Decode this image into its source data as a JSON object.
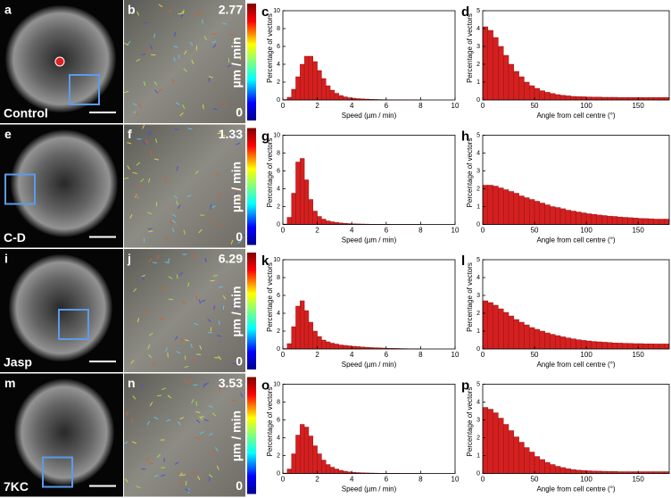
{
  "figure": {
    "rows": [
      {
        "image_panel": "a",
        "condition": "Control",
        "flow_panel": "b",
        "flow_max": 2.77,
        "colorbar_label": "µm / min",
        "colorbar_min": 0
      },
      {
        "image_panel": "e",
        "condition": "C-D",
        "flow_panel": "f",
        "flow_max": 1.33,
        "colorbar_label": "µm / min",
        "colorbar_min": 0
      },
      {
        "image_panel": "i",
        "condition": "Jasp",
        "flow_panel": "j",
        "flow_max": 6.29,
        "colorbar_label": "µm / min",
        "colorbar_min": 0
      },
      {
        "image_panel": "m",
        "condition": "7KC",
        "flow_panel": "n",
        "flow_max": 3.53,
        "colorbar_label": "µm / min",
        "colorbar_min": 0
      }
    ]
  },
  "chart_data": [
    {
      "type": "histogram",
      "panel_label": "c",
      "x_label": "Speed (µm / min)",
      "y_label": "Percentage of vectors",
      "color": "#d42020",
      "bins": [
        0,
        0.25,
        0.5,
        0.75,
        1,
        1.25,
        1.5,
        1.75,
        2,
        2.25,
        2.5,
        2.75,
        3,
        3.25,
        3.5,
        3.75,
        4,
        4.25,
        4.5,
        4.75,
        5,
        5.25,
        5.5,
        5.75,
        6,
        6.25,
        6.5,
        6.75,
        7,
        7.25,
        7.5,
        7.75,
        8
      ],
      "values": [
        0.05,
        0.3,
        1.2,
        2.6,
        4.0,
        4.9,
        4.9,
        4.3,
        3.3,
        2.4,
        1.6,
        1.1,
        0.75,
        0.5,
        0.35,
        0.25,
        0.2,
        0.15,
        0.12,
        0.1,
        0.08,
        0.06,
        0.05,
        0.04,
        0.03,
        0.03,
        0.02,
        0.02,
        0.01,
        0.01,
        0.01,
        0.01
      ],
      "xlim": [
        0,
        10
      ],
      "ylim": [
        0,
        10
      ],
      "xticks": [
        0,
        2,
        4,
        6,
        8,
        10
      ],
      "yticks": [
        0,
        2,
        4,
        6,
        8,
        10
      ]
    },
    {
      "type": "histogram",
      "panel_label": "d",
      "x_label": "Angle from cell centre (°)",
      "y_label": "Percentage of vectors",
      "color": "#d42020",
      "bins": [
        0,
        5,
        10,
        15,
        20,
        25,
        30,
        35,
        40,
        45,
        50,
        55,
        60,
        65,
        70,
        75,
        80,
        85,
        90,
        95,
        100,
        105,
        110,
        115,
        120,
        125,
        130,
        135,
        140,
        145,
        150,
        155,
        160,
        165,
        170,
        175,
        180
      ],
      "values": [
        4.1,
        3.9,
        3.5,
        3.0,
        2.5,
        2.0,
        1.6,
        1.3,
        1.0,
        0.8,
        0.65,
        0.52,
        0.43,
        0.36,
        0.3,
        0.26,
        0.23,
        0.2,
        0.19,
        0.18,
        0.17,
        0.16,
        0.16,
        0.15,
        0.15,
        0.15,
        0.14,
        0.14,
        0.14,
        0.14,
        0.14,
        0.14,
        0.14,
        0.14,
        0.14,
        0.14
      ],
      "xlim": [
        0,
        180
      ],
      "ylim": [
        0,
        5
      ],
      "xticks": [
        0,
        50,
        100,
        150
      ],
      "yticks": [
        0,
        1,
        2,
        3,
        4,
        5
      ]
    },
    {
      "type": "histogram",
      "panel_label": "g",
      "x_label": "Speed (µm / min)",
      "y_label": "Percentage of vectors",
      "color": "#d42020",
      "bins": [
        0,
        0.25,
        0.5,
        0.75,
        1,
        1.25,
        1.5,
        1.75,
        2,
        2.25,
        2.5,
        2.75,
        3,
        3.25,
        3.5,
        3.75,
        4,
        4.25,
        4.5,
        4.75,
        5,
        5.25,
        5.5,
        5.75,
        6,
        6.25,
        6.5,
        6.75,
        7,
        7.25,
        7.5,
        7.75,
        8
      ],
      "values": [
        0.05,
        0.8,
        3.5,
        7.0,
        7.4,
        5.0,
        2.8,
        1.5,
        0.9,
        0.6,
        0.4,
        0.3,
        0.22,
        0.17,
        0.13,
        0.1,
        0.08,
        0.06,
        0.05,
        0.04,
        0.03,
        0.03,
        0.02,
        0.02,
        0.02,
        0.01,
        0.01,
        0.01,
        0.01,
        0.01,
        0.01,
        0.01
      ],
      "xlim": [
        0,
        10
      ],
      "ylim": [
        0,
        10
      ],
      "xticks": [
        0,
        2,
        4,
        6,
        8,
        10
      ],
      "yticks": [
        0,
        2,
        4,
        6,
        8,
        10
      ]
    },
    {
      "type": "histogram",
      "panel_label": "h",
      "x_label": "Angle from cell centre (°)",
      "y_label": "Percentage of vectors",
      "color": "#d42020",
      "bins": [
        0,
        5,
        10,
        15,
        20,
        25,
        30,
        35,
        40,
        45,
        50,
        55,
        60,
        65,
        70,
        75,
        80,
        85,
        90,
        95,
        100,
        105,
        110,
        115,
        120,
        125,
        130,
        135,
        140,
        145,
        150,
        155,
        160,
        165,
        170,
        175,
        180
      ],
      "values": [
        2.2,
        2.2,
        2.15,
        2.05,
        1.95,
        1.85,
        1.75,
        1.6,
        1.5,
        1.4,
        1.3,
        1.2,
        1.1,
        1.0,
        0.95,
        0.88,
        0.8,
        0.75,
        0.7,
        0.65,
        0.6,
        0.57,
        0.53,
        0.5,
        0.47,
        0.45,
        0.42,
        0.4,
        0.38,
        0.36,
        0.34,
        0.33,
        0.32,
        0.3,
        0.3,
        0.3
      ],
      "xlim": [
        0,
        180
      ],
      "ylim": [
        0,
        5
      ],
      "xticks": [
        0,
        50,
        100,
        150
      ],
      "yticks": [
        0,
        1,
        2,
        3,
        4,
        5
      ]
    },
    {
      "type": "histogram",
      "panel_label": "k",
      "x_label": "Speed (µm / min)",
      "y_label": "Percentage of vectors",
      "color": "#d42020",
      "bins": [
        0,
        0.25,
        0.5,
        0.75,
        1,
        1.25,
        1.5,
        1.75,
        2,
        2.25,
        2.5,
        2.75,
        3,
        3.25,
        3.5,
        3.75,
        4,
        4.25,
        4.5,
        4.75,
        5,
        5.25,
        5.5,
        5.75,
        6,
        6.25,
        6.5,
        6.75,
        7,
        7.25,
        7.5,
        7.75,
        8
      ],
      "values": [
        0.05,
        0.6,
        2.5,
        4.8,
        5.4,
        4.3,
        3.0,
        2.0,
        1.4,
        1.0,
        0.8,
        0.65,
        0.55,
        0.45,
        0.4,
        0.35,
        0.3,
        0.26,
        0.22,
        0.19,
        0.16,
        0.14,
        0.12,
        0.1,
        0.08,
        0.07,
        0.06,
        0.05,
        0.04,
        0.03,
        0.02,
        0.02
      ],
      "xlim": [
        0,
        10
      ],
      "ylim": [
        0,
        10
      ],
      "xticks": [
        0,
        2,
        4,
        6,
        8,
        10
      ],
      "yticks": [
        0,
        2,
        4,
        6,
        8,
        10
      ]
    },
    {
      "type": "histogram",
      "panel_label": "l",
      "x_label": "Angle from cell centre (°)",
      "y_label": "Percentage of vectors",
      "color": "#d42020",
      "bins": [
        0,
        5,
        10,
        15,
        20,
        25,
        30,
        35,
        40,
        45,
        50,
        55,
        60,
        65,
        70,
        75,
        80,
        85,
        90,
        95,
        100,
        105,
        110,
        115,
        120,
        125,
        130,
        135,
        140,
        145,
        150,
        155,
        160,
        165,
        170,
        175,
        180
      ],
      "values": [
        2.7,
        2.6,
        2.45,
        2.25,
        2.05,
        1.85,
        1.65,
        1.5,
        1.35,
        1.2,
        1.1,
        1.0,
        0.9,
        0.82,
        0.75,
        0.68,
        0.62,
        0.57,
        0.52,
        0.48,
        0.45,
        0.42,
        0.4,
        0.38,
        0.36,
        0.34,
        0.33,
        0.32,
        0.31,
        0.3,
        0.3,
        0.29,
        0.29,
        0.28,
        0.28,
        0.28
      ],
      "xlim": [
        0,
        180
      ],
      "ylim": [
        0,
        5
      ],
      "xticks": [
        0,
        50,
        100,
        150
      ],
      "yticks": [
        0,
        1,
        2,
        3,
        4,
        5
      ]
    },
    {
      "type": "histogram",
      "panel_label": "o",
      "x_label": "Speed (µm / min)",
      "y_label": "Percentage of vectors",
      "color": "#d42020",
      "bins": [
        0,
        0.25,
        0.5,
        0.75,
        1,
        1.25,
        1.5,
        1.75,
        2,
        2.25,
        2.5,
        2.75,
        3,
        3.25,
        3.5,
        3.75,
        4,
        4.25,
        4.5,
        4.75,
        5,
        5.25,
        5.5,
        5.75,
        6,
        6.25,
        6.5,
        6.75,
        7,
        7.25,
        7.5,
        7.75,
        8
      ],
      "values": [
        0.05,
        0.5,
        2.2,
        4.3,
        5.5,
        5.2,
        4.2,
        3.1,
        2.2,
        1.5,
        1.0,
        0.7,
        0.5,
        0.35,
        0.25,
        0.18,
        0.14,
        0.1,
        0.08,
        0.06,
        0.05,
        0.04,
        0.03,
        0.03,
        0.02,
        0.02,
        0.02,
        0.01,
        0.01,
        0.01,
        0.01,
        0.01
      ],
      "xlim": [
        0,
        10
      ],
      "ylim": [
        0,
        10
      ],
      "xticks": [
        0,
        2,
        4,
        6,
        8,
        10
      ],
      "yticks": [
        0,
        2,
        4,
        6,
        8,
        10
      ]
    },
    {
      "type": "histogram",
      "panel_label": "p",
      "x_label": "Angle from cell centre (°)",
      "y_label": "Percentage of vectors",
      "color": "#d42020",
      "bins": [
        0,
        5,
        10,
        15,
        20,
        25,
        30,
        35,
        40,
        45,
        50,
        55,
        60,
        65,
        70,
        75,
        80,
        85,
        90,
        95,
        100,
        105,
        110,
        115,
        120,
        125,
        130,
        135,
        140,
        145,
        150,
        155,
        160,
        165,
        170,
        175,
        180
      ],
      "values": [
        3.7,
        3.6,
        3.4,
        3.1,
        2.75,
        2.4,
        2.05,
        1.75,
        1.45,
        1.2,
        0.95,
        0.78,
        0.62,
        0.5,
        0.4,
        0.33,
        0.27,
        0.22,
        0.19,
        0.17,
        0.15,
        0.14,
        0.13,
        0.12,
        0.11,
        0.11,
        0.1,
        0.1,
        0.1,
        0.1,
        0.1,
        0.1,
        0.1,
        0.1,
        0.1,
        0.1
      ],
      "xlim": [
        0,
        180
      ],
      "ylim": [
        0,
        5
      ],
      "xticks": [
        0,
        50,
        100,
        150
      ],
      "yticks": [
        0,
        1,
        2,
        3,
        4,
        5
      ]
    }
  ]
}
